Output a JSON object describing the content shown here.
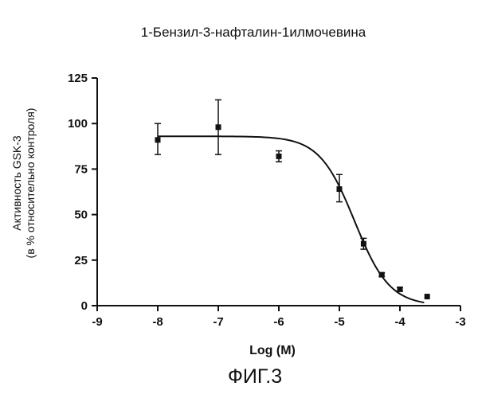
{
  "chart_data": {
    "type": "scatter",
    "title": "1-Бензил-3-нафталин-1илмочевина",
    "xlabel": "Log (M)",
    "ylabel_line1": "Активность GSK-3",
    "ylabel_line2": "(в % относительно контроля)",
    "xlim": [
      -9,
      -3
    ],
    "ylim": [
      0,
      125
    ],
    "x_ticks": [
      -9,
      -8,
      -7,
      -6,
      -5,
      -4,
      -3
    ],
    "x_tick_labels": [
      "-9",
      "-8",
      "-7",
      "-6",
      "-5",
      "-4",
      "-3"
    ],
    "y_ticks": [
      0,
      25,
      50,
      75,
      100,
      125
    ],
    "y_tick_labels": [
      "0",
      "25",
      "50",
      "75",
      "100",
      "125"
    ],
    "grid": false,
    "series": [
      {
        "points": [
          {
            "x": -8,
            "y": 91,
            "err_low": 83,
            "err_high": 100
          },
          {
            "x": -7,
            "y": 98,
            "err_low": 83,
            "err_high": 113
          },
          {
            "x": -6,
            "y": 82,
            "err_low": 79,
            "err_high": 85
          },
          {
            "x": -5,
            "y": 64,
            "err_low": 57,
            "err_high": 72
          },
          {
            "x": -4.6,
            "y": 34,
            "err_low": 31,
            "err_high": 37
          },
          {
            "x": -4.3,
            "y": 17,
            "err_low": 16,
            "err_high": 18
          },
          {
            "x": -4,
            "y": 9,
            "err_low": 8,
            "err_high": 10
          },
          {
            "x": -3.55,
            "y": 5,
            "err_low": 5,
            "err_high": 5
          }
        ],
        "fit_curve": {
          "model": "sigmoidal dose-response",
          "top": 93,
          "bottom": 0,
          "log_ic50": -4.75,
          "hill_slope": -1.0,
          "x_range": [
            -8,
            -3.6
          ]
        }
      }
    ],
    "figure_label": "ФИГ.3"
  }
}
